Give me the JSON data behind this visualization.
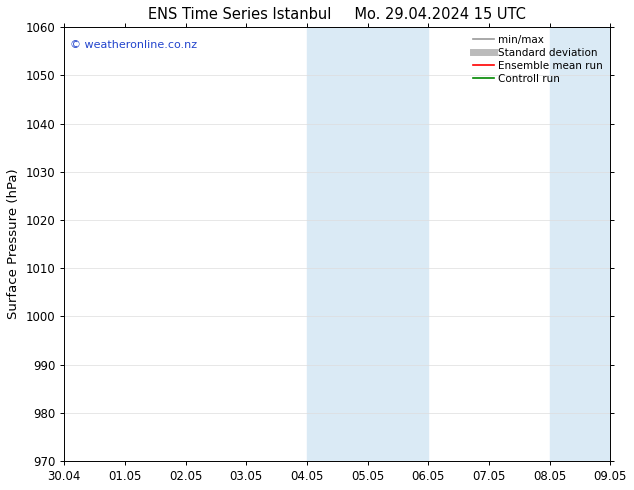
{
  "title_left": "ENS Time Series Istanbul",
  "title_right": "Mo. 29.04.2024 15 UTC",
  "ylabel": "Surface Pressure (hPa)",
  "ylim": [
    970,
    1060
  ],
  "yticks": [
    970,
    980,
    990,
    1000,
    1010,
    1020,
    1030,
    1040,
    1050,
    1060
  ],
  "xlim": [
    0,
    9
  ],
  "xtick_positions": [
    0,
    1,
    2,
    3,
    4,
    5,
    6,
    7,
    8,
    9
  ],
  "xtick_labels": [
    "30.04",
    "01.05",
    "02.05",
    "03.05",
    "04.05",
    "05.05",
    "06.05",
    "07.05",
    "08.05",
    "09.05"
  ],
  "shaded_bands": [
    {
      "xmin": 4,
      "xmax": 6,
      "color": "#daeaf5"
    },
    {
      "xmin": 8,
      "xmax": 9,
      "color": "#daeaf5"
    }
  ],
  "watermark": "© weatheronline.co.nz",
  "watermark_color": "#2244cc",
  "legend_entries": [
    {
      "label": "min/max",
      "color": "#999999",
      "lw": 1.2,
      "style": "-"
    },
    {
      "label": "Standard deviation",
      "color": "#bbbbbb",
      "lw": 5,
      "style": "-"
    },
    {
      "label": "Ensemble mean run",
      "color": "#ff0000",
      "lw": 1.2,
      "style": "-"
    },
    {
      "label": "Controll run",
      "color": "#008800",
      "lw": 1.2,
      "style": "-"
    }
  ],
  "background_color": "#ffffff",
  "plot_bg_color": "#ffffff",
  "grid_color": "#dddddd",
  "tick_fontsize": 8.5,
  "label_fontsize": 9.5,
  "title_fontsize": 10.5
}
